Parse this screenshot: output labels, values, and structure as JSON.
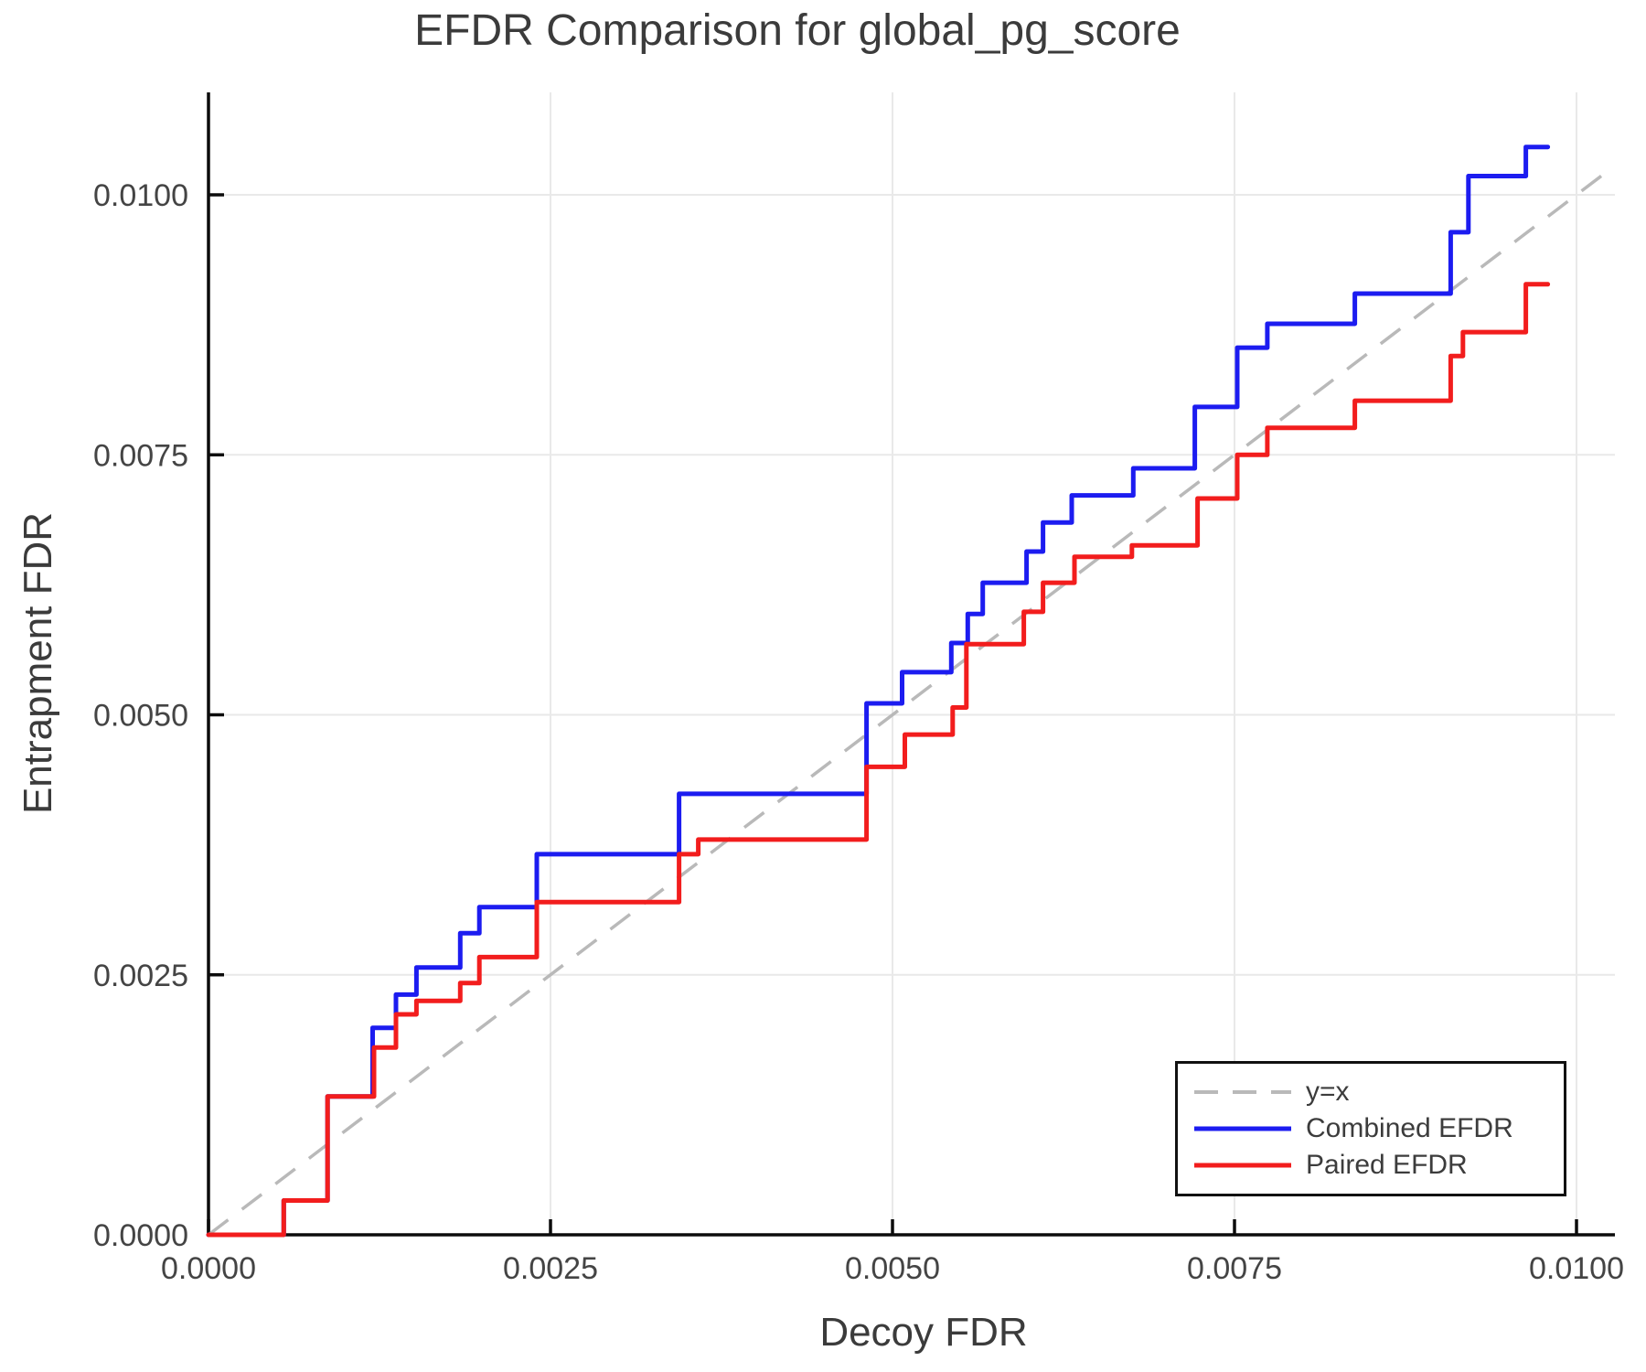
{
  "chart": {
    "title": "EFDR Comparison for global_pg_score",
    "xlabel": "Decoy FDR",
    "ylabel": "Entrapment FDR"
  },
  "chart_data": {
    "type": "line",
    "subtype": "step",
    "title": "EFDR Comparison for global_pg_score",
    "xlabel": "Decoy FDR",
    "ylabel": "Entrapment FDR",
    "xlim": [
      0,
      0.01028
    ],
    "ylim": [
      0,
      0.01099
    ],
    "grid": true,
    "grid_color": "#e9e9e9",
    "background": "#ffffff",
    "spine_color": "#0c0c0c",
    "legend_position": "lower right",
    "x_ticks": [
      {
        "value": 0.0,
        "label": "0.0000"
      },
      {
        "value": 0.0025,
        "label": "0.0025"
      },
      {
        "value": 0.005,
        "label": "0.0050"
      },
      {
        "value": 0.0075,
        "label": "0.0075"
      },
      {
        "value": 0.01,
        "label": "0.0100"
      }
    ],
    "y_ticks": [
      {
        "value": 0.0,
        "label": "0.0000"
      },
      {
        "value": 0.0025,
        "label": "0.0025"
      },
      {
        "value": 0.005,
        "label": "0.0050"
      },
      {
        "value": 0.0075,
        "label": "0.0075"
      },
      {
        "value": 0.01,
        "label": "0.0100"
      }
    ],
    "reference_line": {
      "label": "y=x",
      "color": "#b9b9b9",
      "style": "dashed"
    },
    "series": [
      {
        "name": "Combined EFDR",
        "color": "#1c1cf0",
        "end_x": 0.00979,
        "points": [
          [
            0.0,
            0.0
          ],
          [
            0.00055,
            0.00033
          ],
          [
            0.00087,
            0.00133
          ],
          [
            0.0012,
            0.00199
          ],
          [
            0.00137,
            0.00231
          ],
          [
            0.00152,
            0.00257
          ],
          [
            0.00184,
            0.0029
          ],
          [
            0.00198,
            0.00315
          ],
          [
            0.0024,
            0.00366
          ],
          [
            0.00344,
            0.00424
          ],
          [
            0.00481,
            0.00511
          ],
          [
            0.00507,
            0.00541
          ],
          [
            0.00543,
            0.00569
          ],
          [
            0.00555,
            0.00597
          ],
          [
            0.00566,
            0.00627
          ],
          [
            0.00598,
            0.00657
          ],
          [
            0.0061,
            0.00685
          ],
          [
            0.00631,
            0.00711
          ],
          [
            0.00676,
            0.00737
          ],
          [
            0.00721,
            0.00796
          ],
          [
            0.00752,
            0.00853
          ],
          [
            0.00774,
            0.00876
          ],
          [
            0.00838,
            0.00905
          ],
          [
            0.00908,
            0.00964
          ],
          [
            0.00921,
            0.01018
          ],
          [
            0.00963,
            0.01046
          ]
        ]
      },
      {
        "name": "Paired EFDR",
        "color": "#f21d1d",
        "end_x": 0.00979,
        "points": [
          [
            0.0,
            0.0
          ],
          [
            0.00055,
            0.00033
          ],
          [
            0.00087,
            0.00133
          ],
          [
            0.00121,
            0.0018
          ],
          [
            0.00137,
            0.00212
          ],
          [
            0.00152,
            0.00225
          ],
          [
            0.00184,
            0.00242
          ],
          [
            0.00198,
            0.00267
          ],
          [
            0.0024,
            0.0032
          ],
          [
            0.00344,
            0.00366
          ],
          [
            0.00358,
            0.0038
          ],
          [
            0.00481,
            0.0045
          ],
          [
            0.00509,
            0.00481
          ],
          [
            0.00544,
            0.00507
          ],
          [
            0.00554,
            0.00568
          ],
          [
            0.00596,
            0.00599
          ],
          [
            0.0061,
            0.00627
          ],
          [
            0.00633,
            0.00652
          ],
          [
            0.00675,
            0.00663
          ],
          [
            0.00723,
            0.00708
          ],
          [
            0.00752,
            0.0075
          ],
          [
            0.00774,
            0.00776
          ],
          [
            0.00838,
            0.00802
          ],
          [
            0.00908,
            0.00845
          ],
          [
            0.00917,
            0.00868
          ],
          [
            0.00963,
            0.00914
          ]
        ]
      }
    ],
    "legend": [
      {
        "label": "y=x",
        "color": "#b9b9b9",
        "dashed": true
      },
      {
        "label": "Combined EFDR",
        "color": "#1c1cf0",
        "dashed": false
      },
      {
        "label": "Paired EFDR",
        "color": "#f21d1d",
        "dashed": false
      }
    ]
  }
}
